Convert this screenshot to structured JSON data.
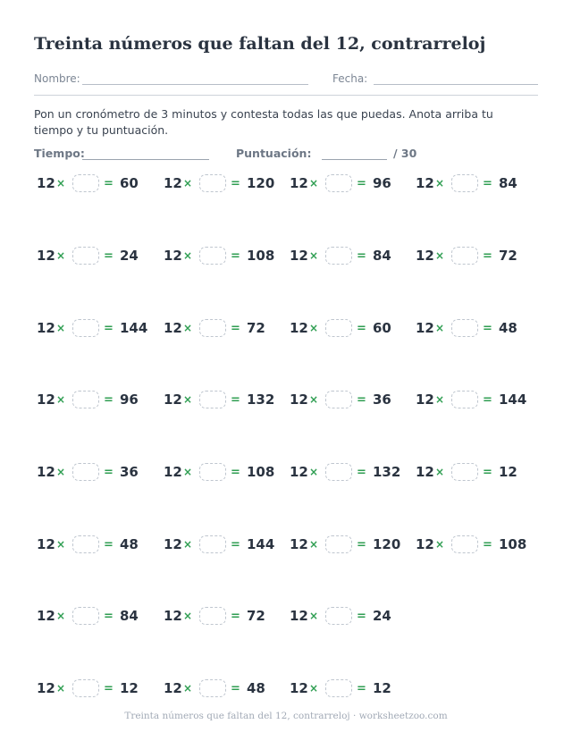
{
  "title": "Treinta números que faltan del 12, contrarreloj",
  "fields": {
    "name_label": "Nombre:",
    "date_label": "Fecha:"
  },
  "instructions": "Pon un cronómetro de 3 minutos y contesta todas las que puedas. Anota arriba tu tiempo y tu puntuación.",
  "score": {
    "time_label": "Tiempo:",
    "points_label": "Puntuación:",
    "total": "/ 30"
  },
  "symbols": {
    "times": "×",
    "equals": "="
  },
  "problems": [
    {
      "factor": "12",
      "result": "60"
    },
    {
      "factor": "12",
      "result": "120"
    },
    {
      "factor": "12",
      "result": "96"
    },
    {
      "factor": "12",
      "result": "84"
    },
    {
      "factor": "12",
      "result": "24"
    },
    {
      "factor": "12",
      "result": "108"
    },
    {
      "factor": "12",
      "result": "84"
    },
    {
      "factor": "12",
      "result": "72"
    },
    {
      "factor": "12",
      "result": "144"
    },
    {
      "factor": "12",
      "result": "72"
    },
    {
      "factor": "12",
      "result": "60"
    },
    {
      "factor": "12",
      "result": "48"
    },
    {
      "factor": "12",
      "result": "96"
    },
    {
      "factor": "12",
      "result": "132"
    },
    {
      "factor": "12",
      "result": "36"
    },
    {
      "factor": "12",
      "result": "144"
    },
    {
      "factor": "12",
      "result": "36"
    },
    {
      "factor": "12",
      "result": "108"
    },
    {
      "factor": "12",
      "result": "132"
    },
    {
      "factor": "12",
      "result": "12"
    },
    {
      "factor": "12",
      "result": "48"
    },
    {
      "factor": "12",
      "result": "144"
    },
    {
      "factor": "12",
      "result": "120"
    },
    {
      "factor": "12",
      "result": "108"
    },
    {
      "factor": "12",
      "result": "84"
    },
    {
      "factor": "12",
      "result": "72"
    },
    {
      "factor": "12",
      "result": "24"
    },
    {
      "factor": "12",
      "result": "12"
    },
    {
      "factor": "12",
      "result": "48"
    },
    {
      "factor": "12",
      "result": "12"
    }
  ],
  "footer": "Treinta números que faltan del 12, contrarreloj · worksheetzoo.com"
}
